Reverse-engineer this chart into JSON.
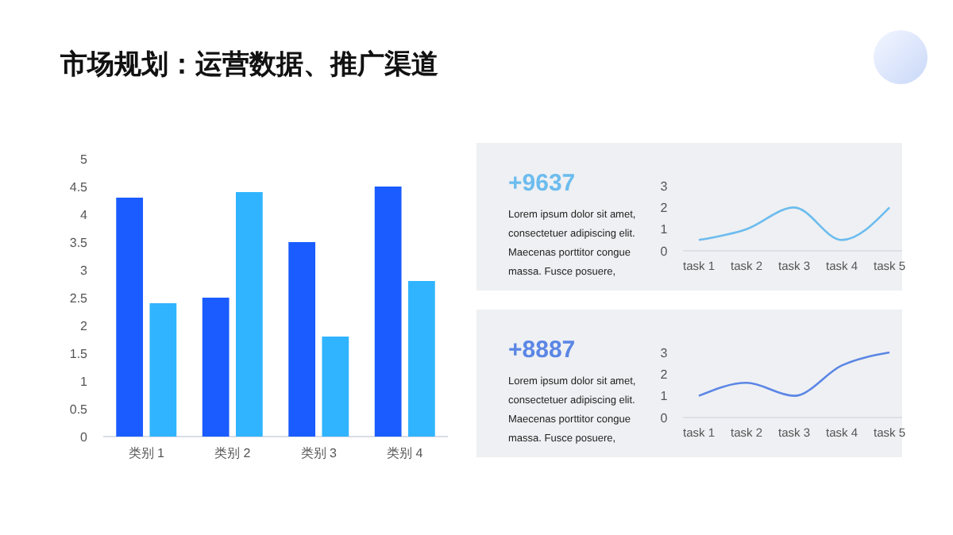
{
  "chart_data": [
    {
      "type": "bar",
      "title": "市场规划：运营数据、推广渠道",
      "categories": [
        "类别 1",
        "类别 2",
        "类别 3",
        "类别 4"
      ],
      "series": [
        {
          "color": "#1a5cff",
          "values": [
            4.3,
            2.5,
            3.5,
            4.5
          ]
        },
        {
          "color": "#30b4ff",
          "values": [
            2.4,
            4.4,
            1.8,
            2.8
          ]
        }
      ],
      "ylim": [
        0,
        5
      ],
      "yticks": [
        0,
        0.5,
        1,
        1.5,
        2,
        2.5,
        3,
        3.5,
        4,
        4.5,
        5
      ]
    },
    {
      "type": "line",
      "title": "+9637",
      "annotations": [
        "Lorem ipsum dolor sit amet, consectetuer adipiscing elit. Maecenas porttitor congue massa. Fusce posuere,"
      ],
      "categories": [
        "task 1",
        "task 2",
        "task 3",
        "task 4",
        "task 5"
      ],
      "series": [
        {
          "color": "#6cbcee",
          "values": [
            0.5,
            1,
            2,
            0.5,
            2
          ]
        }
      ],
      "ylim": [
        0,
        3
      ],
      "yticks": [
        0,
        1,
        2,
        3
      ]
    },
    {
      "type": "line",
      "title": "+8887",
      "annotations": [
        "Lorem ipsum dolor sit amet, consectetuer adipiscing elit. Maecenas porttitor congue massa. Fusce posuere,"
      ],
      "categories": [
        "task 1",
        "task 2",
        "task 3",
        "task 4",
        "task 5"
      ],
      "series": [
        {
          "color": "#5b86e5",
          "values": [
            1,
            1.6,
            1,
            2.4,
            3
          ]
        }
      ],
      "ylim": [
        0,
        3
      ],
      "yticks": [
        0,
        1,
        2,
        3
      ]
    }
  ]
}
